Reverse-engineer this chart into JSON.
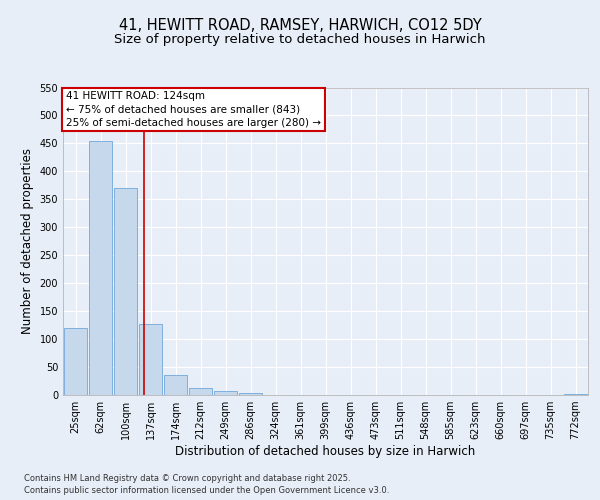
{
  "title1": "41, HEWITT ROAD, RAMSEY, HARWICH, CO12 5DY",
  "title2": "Size of property relative to detached houses in Harwich",
  "xlabel": "Distribution of detached houses by size in Harwich",
  "ylabel": "Number of detached properties",
  "categories": [
    "25sqm",
    "62sqm",
    "100sqm",
    "137sqm",
    "174sqm",
    "212sqm",
    "249sqm",
    "286sqm",
    "324sqm",
    "361sqm",
    "399sqm",
    "436sqm",
    "473sqm",
    "511sqm",
    "548sqm",
    "585sqm",
    "623sqm",
    "660sqm",
    "697sqm",
    "735sqm",
    "772sqm"
  ],
  "values": [
    120,
    455,
    370,
    127,
    35,
    13,
    7,
    4,
    0,
    0,
    0,
    0,
    0,
    0,
    0,
    0,
    0,
    0,
    0,
    0,
    2
  ],
  "bar_color": "#c5d8ec",
  "bar_edge_color": "#5b9bd5",
  "ylim": [
    0,
    550
  ],
  "yticks": [
    0,
    50,
    100,
    150,
    200,
    250,
    300,
    350,
    400,
    450,
    500,
    550
  ],
  "vline_x": 2.73,
  "vline_color": "#cc0000",
  "annotation_title": "41 HEWITT ROAD: 124sqm",
  "annotation_line1": "← 75% of detached houses are smaller (843)",
  "annotation_line2": "25% of semi-detached houses are larger (280) →",
  "annotation_box_color": "#cc0000",
  "annotation_bg": "#ffffff",
  "footer1": "Contains HM Land Registry data © Crown copyright and database right 2025.",
  "footer2": "Contains public sector information licensed under the Open Government Licence v3.0.",
  "bg_color": "#e8eef7",
  "plot_bg_color": "#e8eef7",
  "grid_color": "#ffffff",
  "title_fontsize": 10.5,
  "subtitle_fontsize": 9.5,
  "tick_fontsize": 7,
  "label_fontsize": 8.5,
  "footer_fontsize": 6,
  "ann_fontsize": 7.5
}
